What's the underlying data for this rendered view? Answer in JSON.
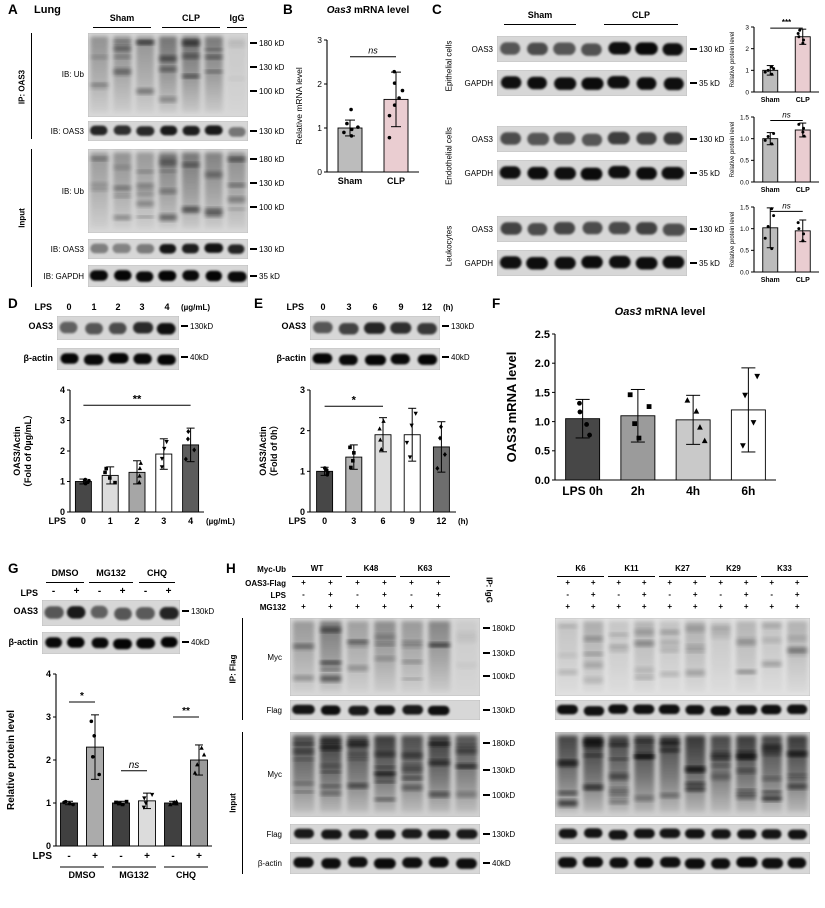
{
  "panels": {
    "A": {
      "label": "A",
      "title": "Lung",
      "headers": [
        "Sham",
        "CLP",
        "IgG"
      ],
      "section_ip": "IP: OAS3",
      "section_input": "Input",
      "row_ub_ip": "IB: Ub",
      "row_oas3_ip": "IB: OAS3",
      "row_ub_in": "IB: Ub",
      "row_oas3_in": "IB: OAS3",
      "row_gapdh": "IB: GAPDH",
      "mw_ub_ip": [
        "180 kD",
        "130 kD",
        "100 kD"
      ],
      "mw_oas3_ip": "130 kD",
      "mw_ub_in": [
        "180 kD",
        "130 kD",
        "100 kD"
      ],
      "mw_oas3_in": "130 kD",
      "mw_gapdh": "35 kD"
    },
    "B": {
      "label": "B"
    },
    "C": {
      "label": "C",
      "headers": [
        "Sham",
        "CLP"
      ],
      "sections": [
        "Epithelial cells",
        "Endothelial cells",
        "Leukocytes"
      ],
      "row_oas3": "OAS3",
      "row_gapdh": "GAPDH",
      "mw_oas3": "130 kD",
      "mw_gapdh": "35 kD"
    },
    "D": {
      "label": "D",
      "cond_prefix": "LPS",
      "cond_values": [
        "0",
        "1",
        "2",
        "3",
        "4"
      ],
      "cond_suffix": "(µg/mL)",
      "row_oas3": "OAS3",
      "row_actin": "β-actin",
      "mw_oas3": "130kD",
      "mw_actin": "40kD"
    },
    "E": {
      "label": "E",
      "cond_prefix": "LPS",
      "cond_values": [
        "0",
        "3",
        "6",
        "9",
        "12"
      ],
      "cond_suffix": "(h)",
      "row_oas3": "OAS3",
      "row_actin": "β-actin",
      "mw_oas3": "130kD",
      "mw_actin": "40kD"
    },
    "F": {
      "label": "F"
    },
    "G": {
      "label": "G",
      "group_headers": [
        "DMSO",
        "MG132",
        "CHQ"
      ],
      "cond_prefix": "LPS",
      "cond_values": [
        "-",
        "+",
        "-",
        "+",
        "-",
        "+"
      ],
      "row_oas3": "OAS3",
      "row_actin": "β-actin",
      "mw_oas3": "130kD",
      "mw_actin": "40kD"
    },
    "H": {
      "label": "H",
      "row_labels": [
        "Myc-Ub",
        "OAS3-Flag",
        "LPS",
        "MG132"
      ],
      "left_headers": [
        "WT",
        "K48",
        "K63"
      ],
      "right_headers": [
        "K6",
        "K11",
        "K27",
        "K29",
        "K33"
      ],
      "left_conds": {
        "flag": [
          "+",
          "+",
          "+",
          "+",
          "+",
          "+"
        ],
        "lps": [
          "-",
          "+",
          "-",
          "+",
          "-",
          "+"
        ],
        "mg": [
          "+",
          "+",
          "+",
          "+",
          "+",
          "+"
        ]
      },
      "right_conds": {
        "flag": [
          "+",
          "+",
          "+",
          "+",
          "+",
          "+",
          "+",
          "+",
          "+",
          "+"
        ],
        "lps": [
          "-",
          "+",
          "-",
          "+",
          "-",
          "+",
          "-",
          "+",
          "-",
          "+"
        ],
        "mg": [
          "+",
          "+",
          "+",
          "+",
          "+",
          "+",
          "+",
          "+",
          "+",
          "+"
        ]
      },
      "ip_igg": "IP: IgG",
      "section_ip": "IP: Flag",
      "section_input": "Input",
      "row_myc": "Myc",
      "row_flag": "Flag",
      "row_actin": "β-actin",
      "mw_ip_myc": [
        "180kD",
        "130kD",
        "100kD"
      ],
      "mw_ip_flag": "130kD",
      "mw_in_myc": [
        "180kD",
        "130kD",
        "100kD"
      ],
      "mw_in_flag": "130kD",
      "mw_in_actin": "40kD"
    }
  },
  "chart_data": [
    {
      "id": "B",
      "type": "bar",
      "title_italic": "Oas3",
      "title_rest": " mRNA level",
      "ylabel": "Relative mRNA level",
      "categories": [
        "Sham",
        "CLP"
      ],
      "values": [
        1.0,
        1.65
      ],
      "errors": [
        0.18,
        0.62
      ],
      "points": [
        [
          0.82,
          0.9,
          0.97,
          1.02,
          1.1,
          1.42
        ],
        [
          0.78,
          1.28,
          1.52,
          1.68,
          1.85,
          2.02,
          2.28
        ]
      ],
      "ylim": [
        0,
        3
      ],
      "yticks": [
        "0",
        "1",
        "2",
        "3"
      ],
      "bar_colors": [
        "#bcbcbc",
        "#eacdd1"
      ],
      "annotations": [
        {
          "from": 0,
          "to": 1,
          "y": 2.62,
          "text": "ns"
        }
      ]
    },
    {
      "id": "C1",
      "type": "bar",
      "ylabel": "Relative protein level",
      "categories": [
        "Sham",
        "CLP"
      ],
      "values": [
        1.0,
        2.55
      ],
      "errors": [
        0.22,
        0.35
      ],
      "points": [
        [
          0.82,
          0.92,
          1.0,
          1.08,
          1.16
        ],
        [
          2.25,
          2.4,
          2.55,
          2.7,
          2.85
        ]
      ],
      "ylim": [
        0,
        3
      ],
      "yticks": [
        "0",
        "1",
        "2",
        "3"
      ],
      "bar_colors": [
        "#bcbcbc",
        "#eacdd1"
      ],
      "annotations": [
        {
          "from": 0,
          "to": 1,
          "y": 2.95,
          "text": "***"
        }
      ]
    },
    {
      "id": "C2",
      "type": "bar",
      "ylabel": "Relative protein level",
      "categories": [
        "Sham",
        "CLP"
      ],
      "values": [
        1.0,
        1.2
      ],
      "errors": [
        0.14,
        0.16
      ],
      "points": [
        [
          0.88,
          0.96,
          1.05,
          1.12
        ],
        [
          1.06,
          1.15,
          1.24,
          1.33
        ]
      ],
      "ylim": [
        0,
        1.5
      ],
      "yticks": [
        "0.0",
        "0.5",
        "1.0",
        "1.5"
      ],
      "bar_colors": [
        "#bcbcbc",
        "#eacdd1"
      ],
      "annotations": [
        {
          "from": 0,
          "to": 1,
          "y": 1.42,
          "text": "ns"
        }
      ]
    },
    {
      "id": "C3",
      "type": "bar",
      "ylabel": "Relative protein level",
      "categories": [
        "Sham",
        "CLP"
      ],
      "values": [
        1.02,
        0.95
      ],
      "errors": [
        0.46,
        0.25
      ],
      "points": [
        [
          0.54,
          0.78,
          1.05,
          1.3,
          1.46
        ],
        [
          0.72,
          0.88,
          1.0,
          1.14
        ]
      ],
      "ylim": [
        0,
        1.5
      ],
      "yticks": [
        "0.0",
        "0.5",
        "1.0",
        "1.5"
      ],
      "bar_colors": [
        "#bcbcbc",
        "#eacdd1"
      ],
      "annotations": [
        {
          "from": 0,
          "to": 1,
          "y": 1.4,
          "text": "ns"
        }
      ]
    },
    {
      "id": "D",
      "type": "bar",
      "ylabel_lines": [
        "OAS3/Actin",
        "（Fold of 0µg/mL）"
      ],
      "categories": [
        "0",
        "1",
        "2",
        "3",
        "4"
      ],
      "xprefix": "LPS",
      "xsuffix": "(µg/mL)",
      "values": [
        1.0,
        1.2,
        1.3,
        1.9,
        2.2
      ],
      "errors": [
        0.08,
        0.28,
        0.38,
        0.5,
        0.55
      ],
      "ylim": [
        0,
        4
      ],
      "yticks": [
        "0",
        "1",
        "2",
        "3",
        "4"
      ],
      "bar_colors": [
        "#474747",
        "#dcdcdc",
        "#a6a6a6",
        "#ffffff",
        "#5c5c5c"
      ],
      "markers": [
        "circle",
        "square",
        "triangle",
        "tri-down",
        "di"
      ],
      "annotations": [
        {
          "from": 0,
          "to": 4,
          "y": 3.5,
          "text": "**"
        }
      ]
    },
    {
      "id": "E",
      "type": "bar",
      "ylabel_lines": [
        "OAS3/Actin",
        "（Fold of 0h）"
      ],
      "categories": [
        "0",
        "3",
        "6",
        "9",
        "12"
      ],
      "xprefix": "LPS",
      "xsuffix": "(h)",
      "values": [
        1.0,
        1.35,
        1.9,
        1.9,
        1.6
      ],
      "errors": [
        0.1,
        0.3,
        0.42,
        0.65,
        0.62
      ],
      "ylim": [
        0,
        3
      ],
      "yticks": [
        "0",
        "1",
        "2",
        "3"
      ],
      "bar_colors": [
        "#474747",
        "#b3b3b3",
        "#dcdcdc",
        "#ffffff",
        "#6e6e6e"
      ],
      "markers": [
        "circle",
        "square",
        "triangle",
        "tri-down",
        "di"
      ],
      "annotations": [
        {
          "from": 0,
          "to": 2,
          "y": 2.6,
          "text": "*"
        }
      ]
    },
    {
      "id": "F",
      "type": "bar",
      "title_italic": "Oas3",
      "title_rest": " mRNA level",
      "ylabel": "OAS3 mRNA level",
      "categories": [
        "LPS 0h",
        "2h",
        "4h",
        "6h"
      ],
      "values": [
        1.05,
        1.1,
        1.03,
        1.2
      ],
      "errors": [
        0.33,
        0.45,
        0.42,
        0.72
      ],
      "ylim": [
        0,
        2.5
      ],
      "yticks": [
        "0.0",
        "0.5",
        "1.0",
        "1.5",
        "2.0",
        "2.5"
      ],
      "bar_colors": [
        "#474747",
        "#9b9b9b",
        "#c9c9c9",
        "#ffffff"
      ],
      "markers": [
        "circle",
        "square",
        "triangle",
        "tri-down"
      ]
    },
    {
      "id": "G",
      "type": "bar",
      "ylabel": "Relative protein level",
      "categories": [
        "-",
        "+",
        "-",
        "+",
        "-",
        "+"
      ],
      "xprefix": "LPS",
      "group_labels": [
        "DMSO",
        "MG132",
        "CHQ"
      ],
      "values": [
        1.0,
        2.3,
        1.0,
        1.05,
        1.0,
        2.0
      ],
      "errors": [
        0.04,
        0.75,
        0.04,
        0.18,
        0.04,
        0.35
      ],
      "ylim": [
        0,
        4
      ],
      "yticks": [
        "0",
        "1",
        "2",
        "3",
        "4"
      ],
      "bar_colors": [
        "#404040",
        "#ababab",
        "#404040",
        "#dcdcdc",
        "#404040",
        "#9a9a9a"
      ],
      "markers": [
        "circle",
        "circle",
        "square",
        "tri-down",
        "triangle",
        "triangle"
      ],
      "annotations": [
        {
          "from": 0,
          "to": 1,
          "y": 3.35,
          "text": "*"
        },
        {
          "from": 2,
          "to": 3,
          "y": 1.75,
          "text": "ns"
        },
        {
          "from": 4,
          "to": 5,
          "y": 3.0,
          "text": "**"
        }
      ]
    }
  ]
}
